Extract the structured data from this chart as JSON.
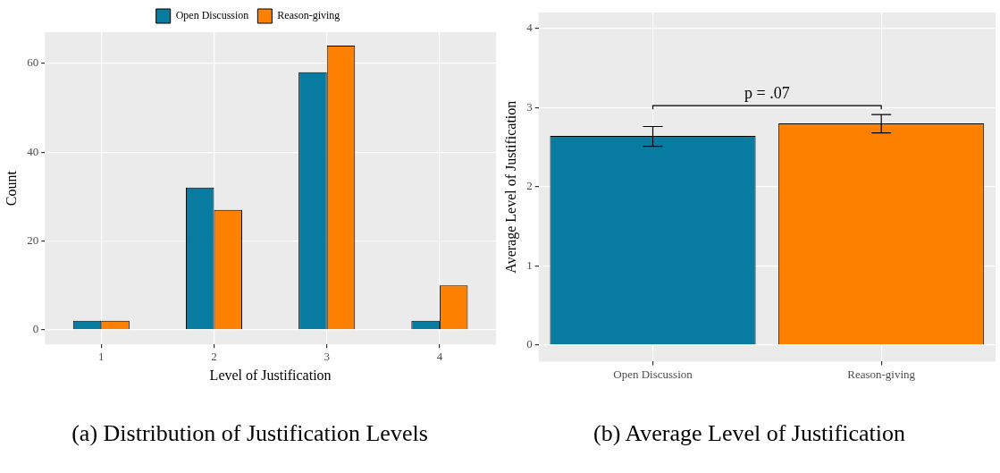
{
  "chart_data": [
    {
      "type": "bar",
      "title": "(a) Distribution of Justification Levels",
      "xlabel": "Level of Justification",
      "ylabel": "Count",
      "categories": [
        "1",
        "2",
        "3",
        "4"
      ],
      "series": [
        {
          "name": "Open Discussion",
          "color": "#077ca0",
          "values": [
            2,
            32,
            58,
            2
          ]
        },
        {
          "name": "Reason-giving",
          "color": "#fd8000",
          "values": [
            2,
            27,
            64,
            10
          ]
        }
      ],
      "ylim": [
        -3.3,
        67
      ],
      "yticks": [
        0,
        20,
        40,
        60
      ],
      "grid": true,
      "legend": "top"
    },
    {
      "type": "bar",
      "title": "(b) Average Level of Justification",
      "ylabel": "Average Level of Justification",
      "categories": [
        "Open Discussion",
        "Reason-giving"
      ],
      "values": [
        2.64,
        2.8
      ],
      "colors": [
        "#077ca0",
        "#fd8000"
      ],
      "errors": [
        [
          2.51,
          2.76
        ],
        [
          2.68,
          2.91
        ]
      ],
      "ylim": [
        -0.21,
        4.2
      ],
      "yticks": [
        0,
        1,
        2,
        3,
        4
      ],
      "grid": true,
      "legend": false,
      "annotations": [
        "p = .07"
      ]
    }
  ]
}
